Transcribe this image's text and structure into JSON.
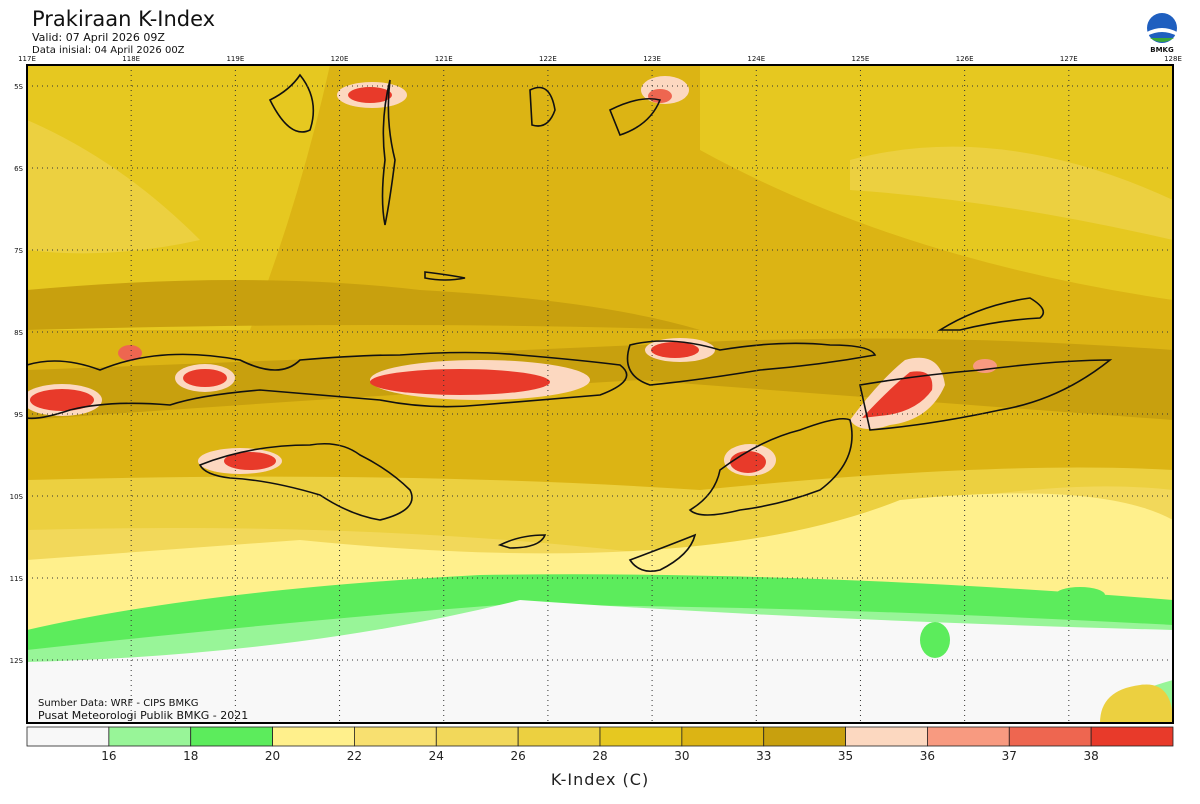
{
  "header": {
    "title": "Prakiraan K-Index",
    "valid": "Valid: 07 April 2026 09Z",
    "initial": "Data inisial: 04 April 2026 00Z",
    "logo": "BMKG"
  },
  "map": {
    "lon_labels": [
      "117E",
      "118E",
      "119E",
      "120E",
      "121E",
      "122E",
      "123E",
      "124E",
      "125E",
      "126E",
      "127E",
      "128E"
    ],
    "lat_labels": [
      "5S",
      "6S",
      "7S",
      "8S",
      "9S",
      "10S",
      "11S",
      "12S"
    ],
    "source": "Sumber Data: WRF - CIPS BMKG",
    "credit": "Pusat Meteorologi Publik BMKG - 2021"
  },
  "colorbar": {
    "ticks": [
      16,
      18,
      20,
      22,
      24,
      26,
      28,
      30,
      33,
      35,
      36,
      37,
      38
    ],
    "colors": [
      "#f8f8f8",
      "#98f598",
      "#5cec5c",
      "#fff08c",
      "#f8e070",
      "#f2d85a",
      "#ecd040",
      "#e6c820",
      "#dcb414",
      "#c8a00e",
      "#fcd8c0",
      "#f89a80",
      "#ee6650",
      "#e83a2a"
    ],
    "label": "K-Index (C)"
  }
}
